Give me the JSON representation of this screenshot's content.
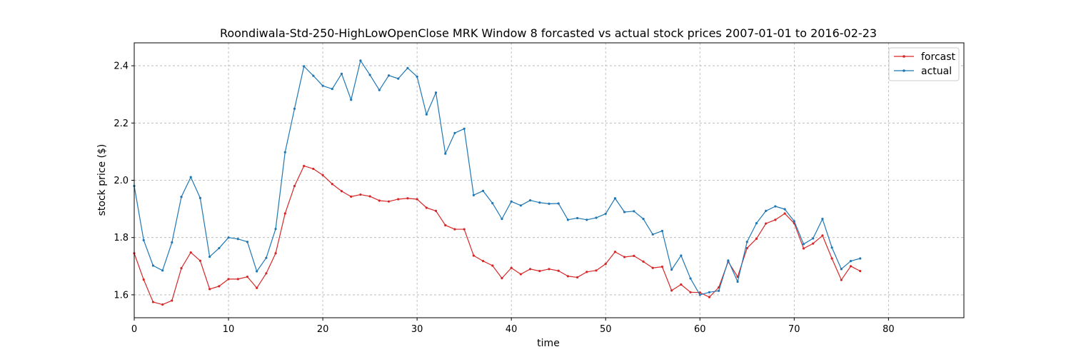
{
  "chart_data": {
    "type": "line",
    "title": "Roondiwala-Std-250-HighLowOpenClose MRK Window 8 forcasted vs actual stock prices 2007-01-01 to 2016-02-23",
    "xlabel": "time",
    "ylabel": "stock price ($)",
    "xlim": [
      0,
      88
    ],
    "ylim": [
      1.52,
      2.48
    ],
    "xticks": [
      0,
      10,
      20,
      30,
      40,
      50,
      60,
      70,
      80
    ],
    "xtick_labels": [
      "0",
      "10",
      "20",
      "30",
      "40",
      "50",
      "60",
      "70",
      "80"
    ],
    "yticks": [
      1.6,
      1.8,
      2.0,
      2.2,
      2.4
    ],
    "ytick_labels": [
      "1.6",
      "1.8",
      "2.0",
      "2.2",
      "2.4"
    ],
    "grid": true,
    "legend_position": "top-right",
    "x": [
      0,
      1,
      2,
      3,
      4,
      5,
      6,
      7,
      8,
      9,
      10,
      11,
      12,
      13,
      14,
      15,
      16,
      17,
      18,
      19,
      20,
      21,
      22,
      23,
      24,
      25,
      26,
      27,
      28,
      29,
      30,
      31,
      32,
      33,
      34,
      35,
      36,
      37,
      38,
      39,
      40,
      41,
      42,
      43,
      44,
      45,
      46,
      47,
      48,
      49,
      50,
      51,
      52,
      53,
      54,
      55,
      56,
      57,
      58,
      59,
      60,
      61,
      62,
      63,
      64,
      65,
      66,
      67,
      68,
      69,
      70,
      71,
      72,
      73,
      74,
      75,
      76,
      77
    ],
    "series": [
      {
        "name": "forcast",
        "color": "#d62728",
        "values": [
          1.745,
          1.653,
          1.575,
          1.566,
          1.58,
          1.693,
          1.748,
          1.719,
          1.62,
          1.63,
          1.655,
          1.655,
          1.663,
          1.624,
          1.675,
          1.745,
          1.884,
          1.98,
          2.05,
          2.04,
          2.018,
          1.987,
          1.962,
          1.943,
          1.95,
          1.944,
          1.929,
          1.926,
          1.934,
          1.937,
          1.934,
          1.904,
          1.893,
          1.843,
          1.829,
          1.829,
          1.737,
          1.718,
          1.702,
          1.658,
          1.694,
          1.672,
          1.69,
          1.683,
          1.69,
          1.684,
          1.665,
          1.661,
          1.68,
          1.685,
          1.708,
          1.75,
          1.732,
          1.736,
          1.716,
          1.694,
          1.698,
          1.615,
          1.636,
          1.609,
          1.608,
          1.592,
          1.626,
          1.716,
          1.663,
          1.763,
          1.796,
          1.849,
          1.862,
          1.884,
          1.85,
          1.762,
          1.779,
          1.807,
          1.727,
          1.652,
          1.7,
          1.683
        ]
      },
      {
        "name": "actual",
        "color": "#1f77b4",
        "values": [
          1.98,
          1.791,
          1.702,
          1.685,
          1.783,
          1.942,
          2.011,
          1.938,
          1.733,
          1.763,
          1.8,
          1.795,
          1.785,
          1.682,
          1.729,
          1.83,
          2.098,
          2.25,
          2.398,
          2.365,
          2.33,
          2.319,
          2.372,
          2.281,
          2.418,
          2.368,
          2.315,
          2.366,
          2.355,
          2.392,
          2.362,
          2.23,
          2.306,
          2.093,
          2.165,
          2.18,
          1.948,
          1.963,
          1.92,
          1.865,
          1.926,
          1.912,
          1.93,
          1.922,
          1.918,
          1.919,
          1.862,
          1.868,
          1.862,
          1.869,
          1.883,
          1.937,
          1.889,
          1.892,
          1.865,
          1.811,
          1.823,
          1.688,
          1.737,
          1.657,
          1.6,
          1.609,
          1.614,
          1.72,
          1.646,
          1.785,
          1.85,
          1.893,
          1.909,
          1.899,
          1.857,
          1.777,
          1.797,
          1.865,
          1.765,
          1.69,
          1.718,
          1.727
        ]
      }
    ]
  }
}
